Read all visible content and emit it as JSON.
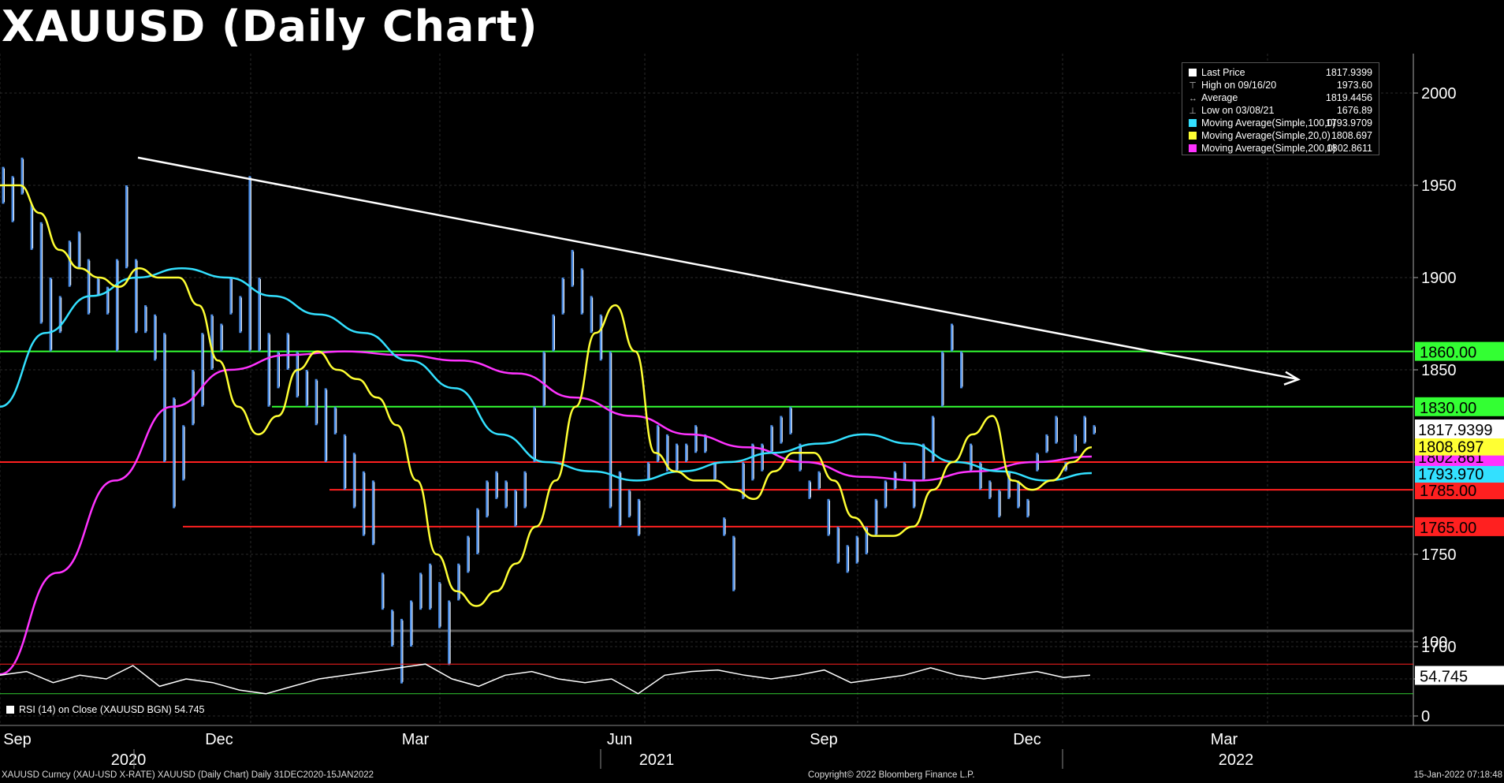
{
  "title": "XAUUSD (Daily Chart)",
  "legend": {
    "rows": [
      {
        "glyph": "box",
        "color": "#ffffff",
        "label": "Last Price",
        "value": "1817.9399"
      },
      {
        "glyph": "T",
        "label": "High on 09/16/20",
        "value": "1973.60"
      },
      {
        "glyph": "avg",
        "label": "Average",
        "value": "1819.4456"
      },
      {
        "glyph": "low",
        "label": "Low on 03/08/21",
        "value": "1676.89"
      },
      {
        "glyph": "box",
        "color": "#33e0ff",
        "label": "Moving Average(Simple,100,0)",
        "value": "1793.9709"
      },
      {
        "glyph": "box",
        "color": "#ffff33",
        "label": "Moving Average(Simple,20,0)",
        "value": "1808.697"
      },
      {
        "glyph": "box",
        "color": "#ff33ff",
        "label": "Moving Average(Simple,200,0)",
        "value": "1802.8611"
      }
    ]
  },
  "rsi_legend": "RSI (14)   on Close (XAUUSD BGN) 54.745",
  "footer": {
    "left": "XAUUSD Curncy (XAU-USD X-RATE) XAUUSD (Daily Chart)  Daily 31DEC2020-15JAN2022",
    "middle": "Copyright© 2022 Bloomberg Finance L.P.",
    "right": "15-Jan-2022 07:18:48"
  },
  "colors": {
    "background": "#000000",
    "price": "#4d8fe8",
    "ma100": "#33e0ff",
    "ma20": "#ffff33",
    "ma200": "#ff33ff",
    "support": "#ff2020",
    "resistance": "#33ff33",
    "trendline": "#ffffff",
    "rsi": "#ffffff"
  },
  "chart_data": {
    "type": "line",
    "price_axis": {
      "ticks": [
        "2000",
        "1950",
        "1900",
        "1850",
        "1800",
        "1750",
        "1700"
      ],
      "range": [
        1665,
        2020
      ]
    },
    "rsi_axis": {
      "ticks": [
        "100",
        "50",
        "0"
      ],
      "range": [
        0,
        100
      ]
    },
    "month_labels": [
      "Sep",
      "Dec",
      "Mar",
      "Jun",
      "Sep",
      "Dec",
      "Mar"
    ],
    "year_labels": [
      "2020",
      "2021",
      "2022"
    ],
    "series": [
      {
        "name": "Last Price",
        "last": "1817.9399"
      },
      {
        "name": "Moving Average(Simple,100,0)",
        "last": "1793.9709"
      },
      {
        "name": "Moving Average(Simple,20,0)",
        "last": "1808.697"
      },
      {
        "name": "Moving Average(Simple,200,0)",
        "last": "1802.8611"
      }
    ],
    "price_path": [
      [
        1960,
        1940
      ],
      [
        1955,
        1930
      ],
      [
        1965,
        1945
      ],
      [
        1940,
        1915
      ],
      [
        1930,
        1875
      ],
      [
        1900,
        1860
      ],
      [
        1890,
        1870
      ],
      [
        1920,
        1895
      ],
      [
        1925,
        1905
      ],
      [
        1910,
        1880
      ],
      [
        1900,
        1890
      ],
      [
        1895,
        1880
      ],
      [
        1910,
        1860
      ],
      [
        1950,
        1905
      ],
      [
        1910,
        1870
      ],
      [
        1885,
        1870
      ],
      [
        1880,
        1855
      ],
      [
        1870,
        1800
      ],
      [
        1835,
        1775
      ],
      [
        1820,
        1790
      ],
      [
        1850,
        1820
      ],
      [
        1870,
        1830
      ],
      [
        1880,
        1850
      ],
      [
        1875,
        1860
      ],
      [
        1900,
        1880
      ],
      [
        1890,
        1870
      ],
      [
        1955,
        1860
      ],
      [
        1900,
        1860
      ],
      [
        1870,
        1830
      ],
      [
        1860,
        1840
      ],
      [
        1870,
        1850
      ],
      [
        1860,
        1835
      ],
      [
        1850,
        1830
      ],
      [
        1845,
        1820
      ],
      [
        1840,
        1800
      ],
      [
        1830,
        1815
      ],
      [
        1815,
        1785
      ],
      [
        1805,
        1775
      ],
      [
        1795,
        1760
      ],
      [
        1790,
        1755
      ],
      [
        1740,
        1720
      ],
      [
        1720,
        1700
      ],
      [
        1715,
        1680
      ],
      [
        1725,
        1700
      ],
      [
        1740,
        1720
      ],
      [
        1745,
        1720
      ],
      [
        1735,
        1710
      ],
      [
        1725,
        1690
      ],
      [
        1745,
        1725
      ],
      [
        1760,
        1740
      ],
      [
        1775,
        1750
      ],
      [
        1790,
        1770
      ],
      [
        1795,
        1780
      ],
      [
        1790,
        1775
      ],
      [
        1785,
        1765
      ],
      [
        1795,
        1775
      ],
      [
        1830,
        1800
      ],
      [
        1860,
        1830
      ],
      [
        1880,
        1860
      ],
      [
        1900,
        1880
      ],
      [
        1915,
        1895
      ],
      [
        1905,
        1880
      ],
      [
        1890,
        1870
      ],
      [
        1880,
        1855
      ],
      [
        1860,
        1775
      ],
      [
        1795,
        1765
      ],
      [
        1785,
        1770
      ],
      [
        1780,
        1760
      ],
      [
        1800,
        1790
      ],
      [
        1820,
        1800
      ],
      [
        1815,
        1795
      ],
      [
        1810,
        1795
      ],
      [
        1810,
        1800
      ],
      [
        1820,
        1805
      ],
      [
        1815,
        1805
      ],
      [
        1800,
        1790
      ],
      [
        1770,
        1760
      ],
      [
        1760,
        1730
      ],
      [
        1800,
        1780
      ],
      [
        1810,
        1790
      ],
      [
        1810,
        1795
      ],
      [
        1820,
        1805
      ],
      [
        1825,
        1810
      ],
      [
        1830,
        1815
      ],
      [
        1810,
        1795
      ],
      [
        1790,
        1780
      ],
      [
        1795,
        1785
      ],
      [
        1780,
        1760
      ],
      [
        1765,
        1745
      ],
      [
        1755,
        1740
      ],
      [
        1760,
        1745
      ],
      [
        1765,
        1750
      ],
      [
        1780,
        1760
      ],
      [
        1790,
        1775
      ],
      [
        1795,
        1785
      ],
      [
        1800,
        1790
      ],
      [
        1790,
        1775
      ],
      [
        1810,
        1790
      ],
      [
        1825,
        1800
      ],
      [
        1860,
        1830
      ],
      [
        1875,
        1860
      ],
      [
        1860,
        1840
      ],
      [
        1810,
        1795
      ],
      [
        1800,
        1785
      ],
      [
        1790,
        1780
      ],
      [
        1785,
        1770
      ],
      [
        1795,
        1780
      ],
      [
        1790,
        1775
      ],
      [
        1780,
        1770
      ],
      [
        1805,
        1795
      ],
      [
        1815,
        1805
      ],
      [
        1825,
        1810
      ],
      [
        1800,
        1795
      ],
      [
        1815,
        1805
      ],
      [
        1825,
        1810
      ],
      [
        1820,
        1815
      ]
    ],
    "ma20_path": [
      1950,
      1950,
      1935,
      1915,
      1905,
      1900,
      1895,
      1905,
      1900,
      1900,
      1885,
      1855,
      1830,
      1815,
      1825,
      1850,
      1860,
      1850,
      1845,
      1835,
      1820,
      1790,
      1750,
      1730,
      1722,
      1730,
      1745,
      1765,
      1790,
      1830,
      1870,
      1885,
      1860,
      1805,
      1795,
      1790,
      1790,
      1785,
      1780,
      1795,
      1805,
      1805,
      1790,
      1770,
      1760,
      1760,
      1765,
      1785,
      1800,
      1815,
      1825,
      1790,
      1785,
      1790,
      1800,
      1808
    ],
    "ma100_path": [
      1830,
      1870,
      1890,
      1900,
      1905,
      1900,
      1890,
      1880,
      1870,
      1855,
      1840,
      1815,
      1800,
      1795,
      1790,
      1795,
      1800,
      1805,
      1810,
      1815,
      1810,
      1800,
      1795,
      1790,
      1794
    ],
    "ma200_path": [
      1685,
      1740,
      1790,
      1830,
      1850,
      1858,
      1860,
      1858,
      1855,
      1848,
      1835,
      1825,
      1815,
      1808,
      1800,
      1792,
      1790,
      1795,
      1800,
      1803
    ],
    "rsi_path": [
      55,
      60,
      45,
      55,
      50,
      68,
      40,
      50,
      45,
      35,
      30,
      40,
      50,
      55,
      60,
      65,
      70,
      50,
      40,
      55,
      60,
      50,
      45,
      50,
      30,
      55,
      60,
      62,
      55,
      50,
      55,
      62,
      45,
      50,
      55,
      65,
      55,
      50,
      55,
      60,
      52,
      55
    ],
    "trendline": {
      "from": {
        "x": "Oct 2020",
        "y": 1965
      },
      "to": {
        "x": "Feb 2022",
        "y": 1845
      }
    },
    "horizontal_levels": [
      {
        "label": "1860.00",
        "value": 1860,
        "color": "green"
      },
      {
        "label": "1830.00",
        "value": 1830,
        "color": "green"
      },
      {
        "label": "1800.00",
        "value": 1800,
        "color": "red"
      },
      {
        "label": "1785.00",
        "value": 1785,
        "color": "red"
      },
      {
        "label": "1765.00",
        "value": 1765,
        "color": "red"
      }
    ],
    "price_tag": "1817.9399",
    "rsi_tag": "54.745"
  }
}
